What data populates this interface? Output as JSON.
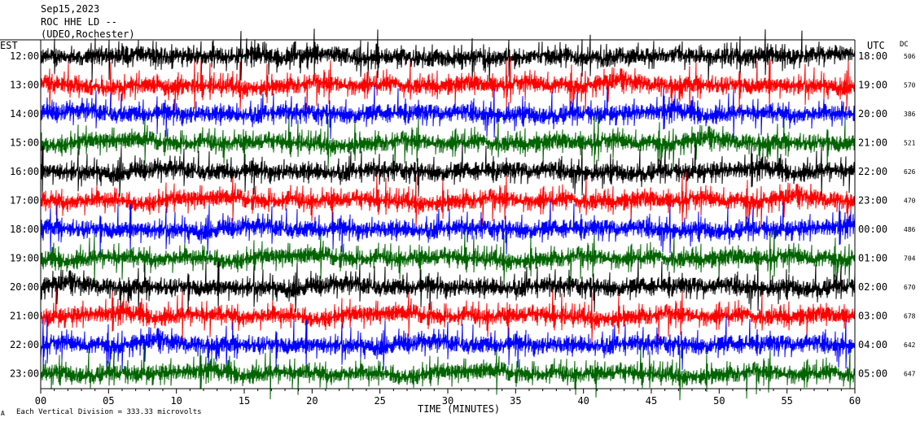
{
  "header": {
    "date": "Sep15,2023",
    "station": "ROC HHE LD --",
    "network": "(UDEO,Rochester)"
  },
  "left_axis_label": "EST",
  "right_axis_label": "UTC",
  "dc_label": "DC",
  "x_axis_title": "TIME (MINUTES)",
  "footer_note": "Each Vertical Division = 333.33 microvolts",
  "colors": [
    "#000000",
    "#ff0000",
    "#0000ff",
    "#006400"
  ],
  "chart_data": {
    "type": "line",
    "x_ticks": [
      "00",
      "05",
      "10",
      "15",
      "20",
      "25",
      "30",
      "35",
      "40",
      "45",
      "50",
      "55",
      "60"
    ],
    "xlim": [
      0,
      60
    ],
    "traces": [
      {
        "est": "12:00",
        "utc": "18:00",
        "dc": "506",
        "color": "black"
      },
      {
        "est": "13:00",
        "utc": "19:00",
        "dc": "570",
        "color": "red"
      },
      {
        "est": "14:00",
        "utc": "20:00",
        "dc": "386",
        "color": "blue"
      },
      {
        "est": "15:00",
        "utc": "21:00",
        "dc": "521",
        "color": "green"
      },
      {
        "est": "16:00",
        "utc": "22:00",
        "dc": "626",
        "color": "black"
      },
      {
        "est": "17:00",
        "utc": "23:00",
        "dc": "470",
        "color": "red"
      },
      {
        "est": "18:00",
        "utc": "00:00",
        "dc": "486",
        "color": "blue"
      },
      {
        "est": "19:00",
        "utc": "01:00",
        "dc": "704",
        "color": "green"
      },
      {
        "est": "20:00",
        "utc": "02:00",
        "dc": "670",
        "color": "black"
      },
      {
        "est": "21:00",
        "utc": "03:00",
        "dc": "678",
        "color": "red"
      },
      {
        "est": "22:00",
        "utc": "04:00",
        "dc": "642",
        "color": "blue"
      },
      {
        "est": "23:00",
        "utc": "05:00",
        "dc": "647",
        "color": "green"
      }
    ]
  }
}
